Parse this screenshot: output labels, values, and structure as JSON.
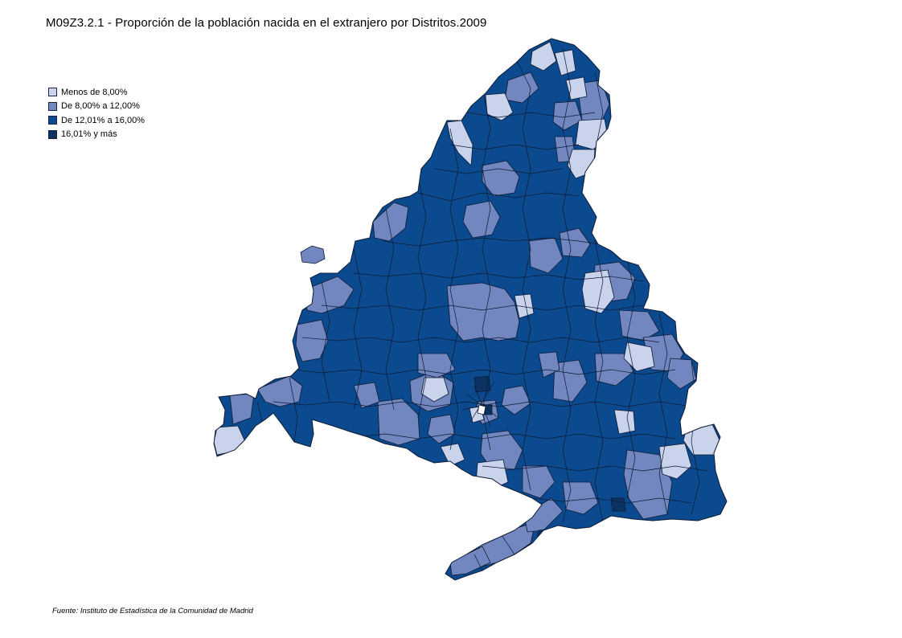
{
  "title": "M09Z3.2.1 - Proporción de la población nacida en el extranjero por Distritos.2009",
  "legend": {
    "items": [
      {
        "label": "Menos de 8,00%",
        "color": "#c9d3ec"
      },
      {
        "label": "De 8,00% a 12,00%",
        "color": "#7286bf"
      },
      {
        "label": "De 12,01% a 16,00%",
        "color": "#0b4a8f"
      },
      {
        "label": "16,01% y más",
        "color": "#0a3262"
      }
    ]
  },
  "source": "Fuente: Instituto de Estadística de la Comunidad de Madrid",
  "map": {
    "region": "Comunidad de Madrid",
    "boundary_color": "#0d1b33"
  }
}
